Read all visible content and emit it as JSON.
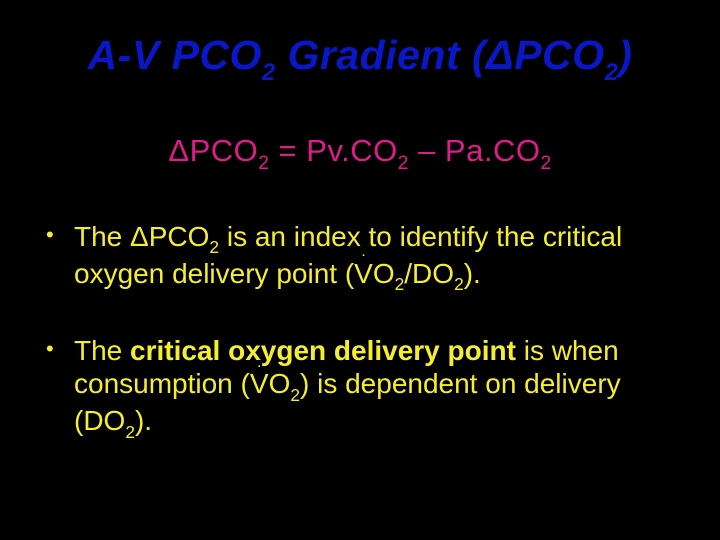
{
  "colors": {
    "background": "#000000",
    "title": "#0A17C7",
    "equation": "#E01B8B",
    "body": "#F5EE30"
  },
  "title": {
    "pre": "A-V PCO",
    "sub1": "2",
    "mid": " Gradient (",
    "delta": "Δ",
    "post": "PCO",
    "sub2": "2",
    "close": ")"
  },
  "equation": {
    "delta": "Δ",
    "p1": "PCO",
    "s1": "2",
    "eq": " = Pv.CO",
    "s2": "2",
    "minus": " – Pa.CO",
    "s3": "2"
  },
  "bullet1": {
    "t1": "The ",
    "delta": "Δ",
    "t2": "PCO",
    "s1": "2",
    "t3": " is an index to identify the critical oxygen delivery point (",
    "v": "V",
    "t4": "O",
    "s2": "2",
    "t5": "/DO",
    "s3": "2",
    "t6": ")."
  },
  "bullet2": {
    "t1": "The ",
    "bold": "critical oxygen delivery point",
    "t2": " is when consumption (",
    "v": "V",
    "t3": "O",
    "s1": "2",
    "t4": ") is dependent on delivery (DO",
    "s2": "2",
    "t5": ")."
  }
}
